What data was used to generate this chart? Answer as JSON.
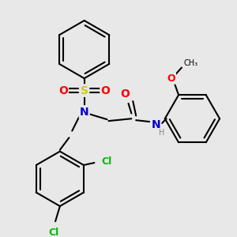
{
  "background_color": "#e8e8e8",
  "figsize": [
    3.0,
    3.0
  ],
  "dpi": 100,
  "bond_color": "#000000",
  "bond_width": 1.5,
  "atom_colors": {
    "N": "#0000cc",
    "O": "#ff0000",
    "Cl": "#00bb00",
    "S": "#cccc00",
    "H": "#888888",
    "C": "#000000"
  }
}
